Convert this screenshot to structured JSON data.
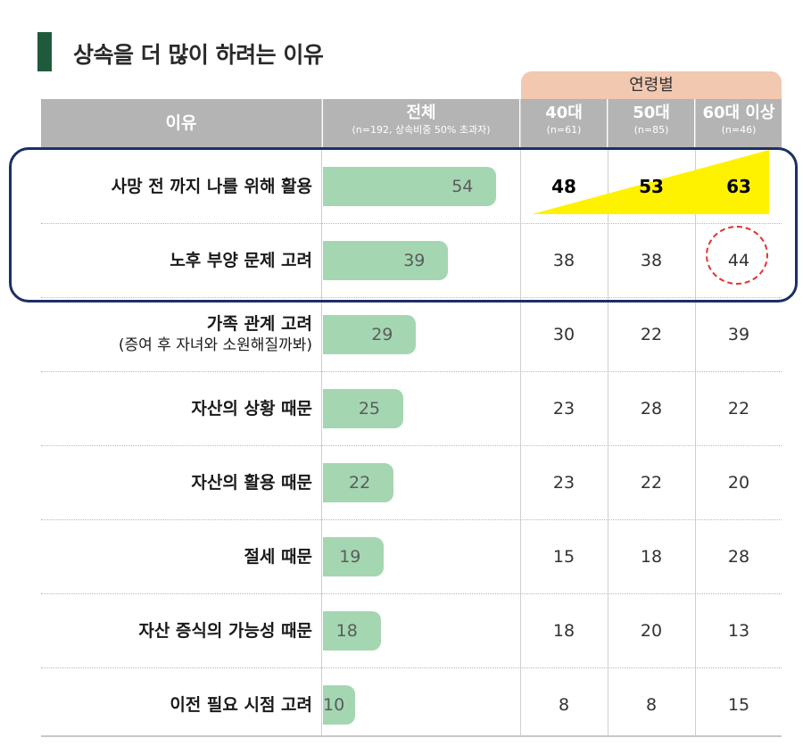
{
  "title": "상속을 더 많이 하려는 이유",
  "age_group_header": "연령별",
  "headers": {
    "reason": "이유",
    "total": "전체",
    "total_sub": "(n=192, 상속비중 50% 초과자)",
    "age40": "40대",
    "age40_sub": "(n=61)",
    "age50": "50대",
    "age50_sub": "(n=85)",
    "age60": "60대 이상",
    "age60_sub": "(n=46)"
  },
  "colors": {
    "bar": "#a4d6b2",
    "header": "#b4b4b4",
    "age_header": "#f2c8b0",
    "highlight_box": "#1c2f66",
    "highlight_triangle": "#fff200",
    "circle": "#e2352f",
    "title_accent": "#1f5a3c"
  },
  "chart_data": {
    "type": "bar",
    "title": "상속을 더 많이 하려는 이유",
    "xlim": [
      0,
      100
    ],
    "categories": [
      "사망 전 까지 나를 위해 활용",
      "노후 부양 문제 고려",
      "가족 관계 고려 (증여 후 자녀와 소원해질까봐)",
      "자산의 상황 때문",
      "자산의 활용 때문",
      "절세 때문",
      "자산 증식의 가능성 때문",
      "이전 필요 시점 고려"
    ],
    "series": [
      {
        "name": "전체",
        "values": [
          54,
          39,
          29,
          25,
          22,
          19,
          18,
          10
        ]
      },
      {
        "name": "40대",
        "values": [
          48,
          38,
          30,
          23,
          23,
          15,
          18,
          8
        ]
      },
      {
        "name": "50대",
        "values": [
          53,
          38,
          22,
          28,
          22,
          18,
          20,
          8
        ]
      },
      {
        "name": "60대 이상",
        "values": [
          63,
          44,
          39,
          22,
          20,
          28,
          13,
          15
        ]
      }
    ]
  },
  "rows": [
    {
      "label": "사망 전 까지 나를 위해 활용",
      "sub": "",
      "total": "54",
      "a40": "48",
      "a50": "53",
      "a60": "63"
    },
    {
      "label": "노후 부양 문제 고려",
      "sub": "",
      "total": "39",
      "a40": "38",
      "a50": "38",
      "a60": "44"
    },
    {
      "label": "가족 관계 고려",
      "sub": "(증여 후 자녀와 소원해질까봐)",
      "total": "29",
      "a40": "30",
      "a50": "22",
      "a60": "39"
    },
    {
      "label": "자산의 상황 때문",
      "sub": "",
      "total": "25",
      "a40": "23",
      "a50": "28",
      "a60": "22"
    },
    {
      "label": "자산의 활용 때문",
      "sub": "",
      "total": "22",
      "a40": "23",
      "a50": "22",
      "a60": "20"
    },
    {
      "label": "절세 때문",
      "sub": "",
      "total": "19",
      "a40": "15",
      "a50": "18",
      "a60": "28"
    },
    {
      "label": "자산 증식의 가능성 때문",
      "sub": "",
      "total": "18",
      "a40": "18",
      "a50": "20",
      "a60": "13"
    },
    {
      "label": "이전 필요 시점 고려",
      "sub": "",
      "total": "10",
      "a40": "8",
      "a50": "8",
      "a60": "15"
    }
  ]
}
